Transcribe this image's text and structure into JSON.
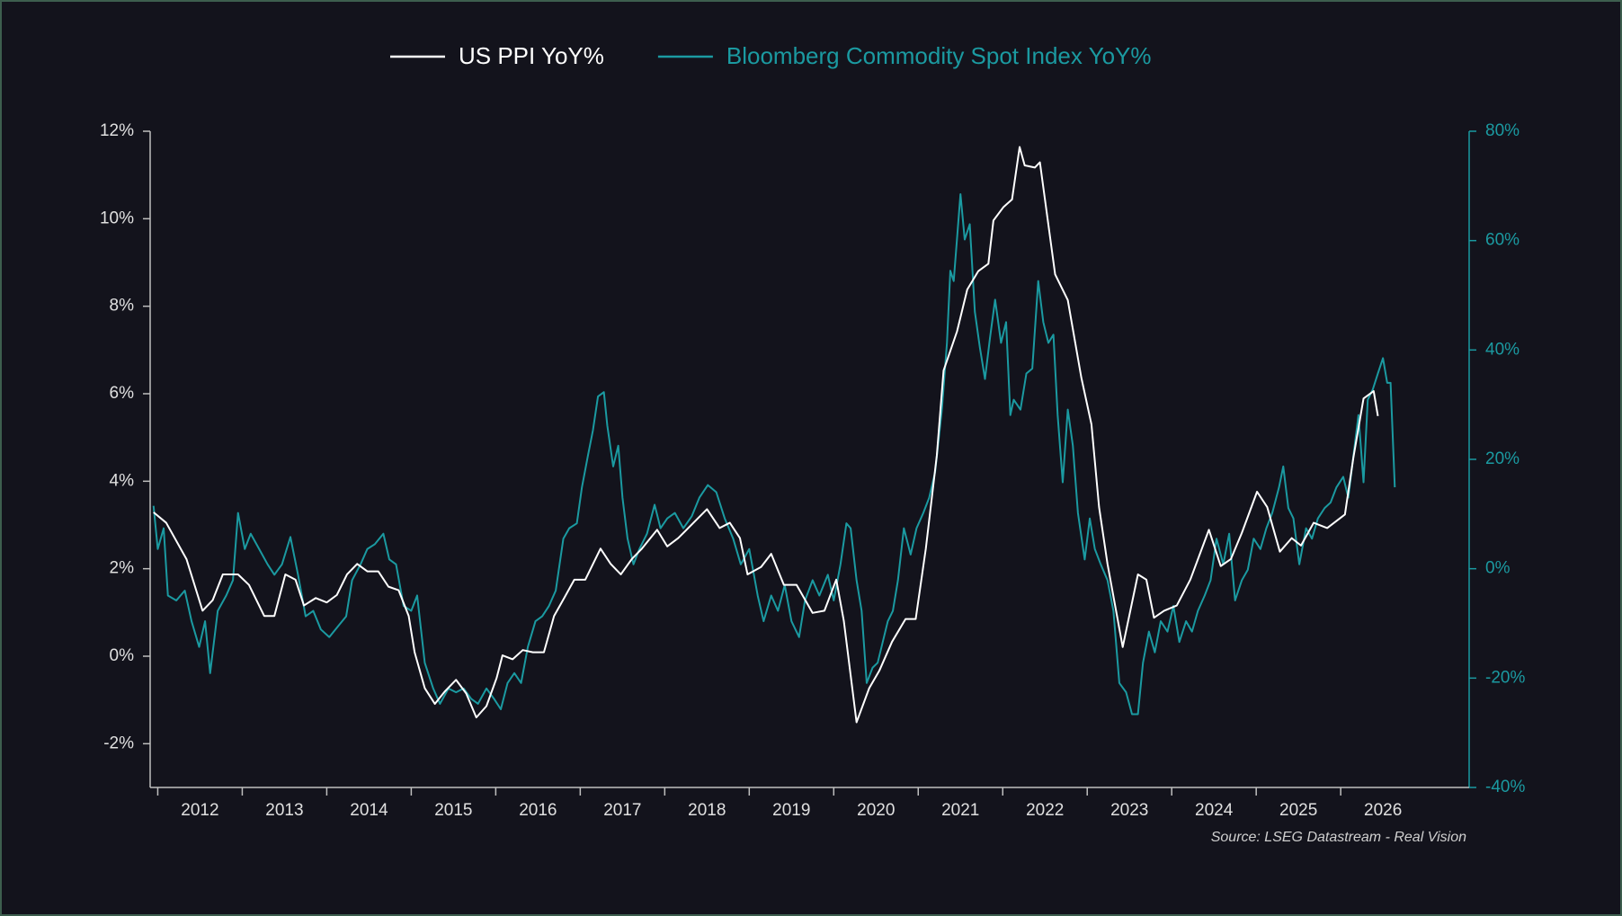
{
  "chart_data": {
    "type": "line",
    "series": [
      {
        "name": "US PPI YoY%",
        "color": "#ffffff",
        "axis": "y",
        "x": [
          2011.95,
          2012.1,
          2012.34,
          2012.53,
          2012.65,
          2012.77,
          2012.95,
          2013.08,
          2013.26,
          2013.38,
          2013.51,
          2013.63,
          2013.73,
          2013.87,
          2014.0,
          2014.12,
          2014.24,
          2014.36,
          2014.48,
          2014.61,
          2014.73,
          2014.85,
          2014.97,
          2015.04,
          2015.16,
          2015.28,
          2015.4,
          2015.53,
          2015.65,
          2015.77,
          2015.89,
          2016.01,
          2016.08,
          2016.2,
          2016.32,
          2016.44,
          2016.57,
          2016.69,
          2016.81,
          2016.93,
          2017.06,
          2017.24,
          2017.36,
          2017.48,
          2017.61,
          2017.73,
          2017.91,
          2018.03,
          2018.16,
          2018.34,
          2018.5,
          2018.65,
          2018.77,
          2018.89,
          2018.98,
          2019.14,
          2019.26,
          2019.41,
          2019.56,
          2019.75,
          2019.89,
          2020.03,
          2020.12,
          2020.27,
          2020.42,
          2020.54,
          2020.69,
          2020.85,
          2020.97,
          2021.09,
          2021.22,
          2021.3,
          2021.46,
          2021.58,
          2021.71,
          2021.83,
          2021.89,
          2022.01,
          2022.11,
          2022.2,
          2022.26,
          2022.38,
          2022.44,
          2022.62,
          2022.77,
          2022.93,
          2023.05,
          2023.14,
          2023.24,
          2023.42,
          2023.6,
          2023.7,
          2023.79,
          2023.91,
          2024.06,
          2024.22,
          2024.44,
          2024.58,
          2024.7,
          2024.83,
          2025.01,
          2025.13,
          2025.28,
          2025.42,
          2025.53,
          2025.68,
          2025.84,
          2026.05,
          2026.15,
          2026.27,
          2026.39,
          2026.44
        ],
        "values": [
          3.29,
          3.05,
          2.22,
          1.04,
          1.28,
          1.87,
          1.87,
          1.63,
          0.92,
          0.92,
          1.87,
          1.75,
          1.16,
          1.33,
          1.23,
          1.4,
          1.87,
          2.11,
          1.94,
          1.94,
          1.59,
          1.51,
          0.92,
          0.09,
          -0.73,
          -1.09,
          -0.8,
          -0.54,
          -0.85,
          -1.4,
          -1.14,
          -0.5,
          0.02,
          -0.07,
          0.14,
          0.09,
          0.09,
          0.92,
          1.33,
          1.75,
          1.75,
          2.46,
          2.11,
          1.87,
          2.22,
          2.46,
          2.89,
          2.51,
          2.7,
          3.05,
          3.36,
          2.93,
          3.05,
          2.7,
          1.87,
          2.04,
          2.34,
          1.63,
          1.63,
          0.99,
          1.04,
          1.75,
          0.8,
          -1.51,
          -0.73,
          -0.33,
          0.33,
          0.85,
          0.85,
          2.46,
          4.59,
          6.53,
          7.43,
          8.38,
          8.8,
          8.97,
          9.96,
          10.27,
          10.44,
          11.64,
          11.22,
          11.17,
          11.29,
          8.73,
          8.14,
          6.37,
          5.3,
          3.41,
          2.11,
          0.21,
          1.87,
          1.75,
          0.88,
          1.04,
          1.16,
          1.75,
          2.89,
          2.06,
          2.22,
          2.82,
          3.76,
          3.41,
          2.39,
          2.7,
          2.53,
          3.05,
          2.93,
          3.24,
          4.54,
          5.89,
          6.06,
          5.49
        ]
      },
      {
        "name": "Bloomberg Commodity Spot Index YoY%",
        "color": "#1b9aa1",
        "axis": "y2",
        "x": [
          2011.95,
          2012.0,
          2012.07,
          2012.12,
          2012.22,
          2012.32,
          2012.4,
          2012.49,
          2012.56,
          2012.62,
          2012.71,
          2012.81,
          2012.89,
          2012.95,
          2013.03,
          2013.1,
          2013.2,
          2013.3,
          2013.38,
          2013.47,
          2013.57,
          2013.66,
          2013.75,
          2013.84,
          2013.93,
          2014.03,
          2014.13,
          2014.23,
          2014.3,
          2014.4,
          2014.48,
          2014.57,
          2014.67,
          2014.74,
          2014.82,
          2014.91,
          2015.0,
          2015.07,
          2015.16,
          2015.26,
          2015.34,
          2015.44,
          2015.53,
          2015.62,
          2015.71,
          2015.79,
          2015.89,
          2015.98,
          2016.06,
          2016.14,
          2016.22,
          2016.3,
          2016.38,
          2016.47,
          2016.55,
          2016.63,
          2016.71,
          2016.8,
          2016.87,
          2016.96,
          2017.02,
          2017.09,
          2017.15,
          2017.21,
          2017.28,
          2017.32,
          2017.39,
          2017.45,
          2017.5,
          2017.56,
          2017.63,
          2017.7,
          2017.79,
          2017.88,
          2017.95,
          2018.03,
          2018.12,
          2018.22,
          2018.32,
          2018.41,
          2018.51,
          2018.61,
          2018.71,
          2018.81,
          2018.9,
          2019.0,
          2019.1,
          2019.17,
          2019.26,
          2019.34,
          2019.42,
          2019.5,
          2019.59,
          2019.66,
          2019.75,
          2019.83,
          2019.93,
          2020.0,
          2020.08,
          2020.15,
          2020.2,
          2020.27,
          2020.33,
          2020.39,
          2020.46,
          2020.52,
          2020.58,
          2020.64,
          2020.7,
          2020.76,
          2020.83,
          2020.91,
          2020.98,
          2021.06,
          2021.13,
          2021.2,
          2021.28,
          2021.34,
          2021.38,
          2021.42,
          2021.5,
          2021.55,
          2021.61,
          2021.67,
          2021.73,
          2021.79,
          2021.85,
          2021.91,
          2021.98,
          2022.04,
          2022.09,
          2022.13,
          2022.21,
          2022.28,
          2022.35,
          2022.42,
          2022.48,
          2022.54,
          2022.6,
          2022.65,
          2022.71,
          2022.77,
          2022.83,
          2022.89,
          2022.97,
          2023.03,
          2023.09,
          2023.16,
          2023.24,
          2023.31,
          2023.38,
          2023.46,
          2023.53,
          2023.6,
          2023.66,
          2023.73,
          2023.8,
          2023.87,
          2023.95,
          2024.02,
          2024.09,
          2024.17,
          2024.24,
          2024.31,
          2024.39,
          2024.46,
          2024.53,
          2024.61,
          2024.68,
          2024.75,
          2024.83,
          2024.9,
          2024.97,
          2025.05,
          2025.12,
          2025.19,
          2025.27,
          2025.32,
          2025.38,
          2025.44,
          2025.51,
          2025.59,
          2025.66,
          2025.73,
          2025.81,
          2025.88,
          2025.95,
          2026.03,
          2026.09,
          2026.15,
          2026.21,
          2026.27,
          2026.32,
          2026.38,
          2026.44,
          2026.5,
          2026.55,
          2026.59,
          2026.64
        ],
        "values": [
          11.5,
          3.6,
          7.4,
          -4.9,
          -5.8,
          -4.0,
          -9.6,
          -14.3,
          -9.6,
          -19.1,
          -7.7,
          -4.9,
          -2.1,
          10.2,
          3.6,
          6.4,
          3.6,
          0.8,
          -1.1,
          0.8,
          5.8,
          -1.1,
          -8.7,
          -7.7,
          -11.1,
          -12.5,
          -10.6,
          -8.7,
          -2.1,
          0.8,
          3.6,
          4.5,
          6.4,
          1.7,
          0.8,
          -6.8,
          -7.7,
          -4.9,
          -17.2,
          -21.9,
          -24.7,
          -21.9,
          -22.6,
          -21.9,
          -23.8,
          -24.7,
          -21.9,
          -23.8,
          -25.7,
          -20.9,
          -19.1,
          -20.9,
          -14.3,
          -9.6,
          -8.7,
          -6.8,
          -4.0,
          5.5,
          7.4,
          8.3,
          14.9,
          20.6,
          25.3,
          31.5,
          32.3,
          26.2,
          18.7,
          22.5,
          13.0,
          5.5,
          0.8,
          3.6,
          6.4,
          11.7,
          7.4,
          9.2,
          10.2,
          7.4,
          9.6,
          13.0,
          15.3,
          14.0,
          9.2,
          5.5,
          0.8,
          3.6,
          -4.9,
          -9.6,
          -4.9,
          -7.7,
          -3.0,
          -9.6,
          -12.5,
          -5.8,
          -2.1,
          -4.9,
          -1.1,
          -5.8,
          0.8,
          8.3,
          7.4,
          -2.1,
          -7.7,
          -20.9,
          -18.1,
          -17.2,
          -13.4,
          -9.6,
          -7.7,
          -2.1,
          7.4,
          2.6,
          7.4,
          10.2,
          13.0,
          17.7,
          29.1,
          41.3,
          54.5,
          52.6,
          68.5,
          60.2,
          63.0,
          47.0,
          40.4,
          34.7,
          42.3,
          49.2,
          41.3,
          45.1,
          28.1,
          30.9,
          29.1,
          35.7,
          36.6,
          52.6,
          45.1,
          41.3,
          42.8,
          28.1,
          15.8,
          29.1,
          22.5,
          10.2,
          1.7,
          9.2,
          3.6,
          0.8,
          -2.1,
          -7.7,
          -20.9,
          -22.6,
          -26.6,
          -26.6,
          -17.2,
          -11.5,
          -15.3,
          -9.6,
          -11.5,
          -6.8,
          -13.4,
          -9.6,
          -11.5,
          -7.7,
          -4.9,
          -2.1,
          5.5,
          0.8,
          6.4,
          -5.8,
          -2.1,
          -0.2,
          5.5,
          3.6,
          7.4,
          10.2,
          14.9,
          18.7,
          11.1,
          9.2,
          0.8,
          7.4,
          5.5,
          9.2,
          11.1,
          12.1,
          14.9,
          16.8,
          13.0,
          20.6,
          28.1,
          15.8,
          30.9,
          32.8,
          35.7,
          38.5,
          34.0,
          34.0,
          14.9
        ]
      }
    ],
    "xlim": [
      2011.91,
      2027.52
    ],
    "xticks": [
      2012,
      2013,
      2014,
      2015,
      2016,
      2017,
      2018,
      2019,
      2020,
      2021,
      2022,
      2023,
      2024,
      2025,
      2026
    ],
    "ylim": [
      -3,
      12
    ],
    "yticks": [
      {
        "value": -2,
        "label": "-2%"
      },
      {
        "value": 0,
        "label": "0%"
      },
      {
        "value": 2,
        "label": "2%"
      },
      {
        "value": 4,
        "label": "4%"
      },
      {
        "value": 6,
        "label": "6%"
      },
      {
        "value": 8,
        "label": "8%"
      },
      {
        "value": 10,
        "label": "10%"
      },
      {
        "value": 12,
        "label": "12%"
      }
    ],
    "y2lim": [
      -40,
      80
    ],
    "y2ticks": [
      {
        "value": -40,
        "label": "-40%"
      },
      {
        "value": -20,
        "label": "-20%"
      },
      {
        "value": 0,
        "label": "0%"
      },
      {
        "value": 20,
        "label": "20%"
      },
      {
        "value": 40,
        "label": "40%"
      },
      {
        "value": 60,
        "label": "60%"
      },
      {
        "value": 80,
        "label": "80%"
      }
    ],
    "legend": "top",
    "source": "Source: LSEG Datastream - Real Vision"
  }
}
